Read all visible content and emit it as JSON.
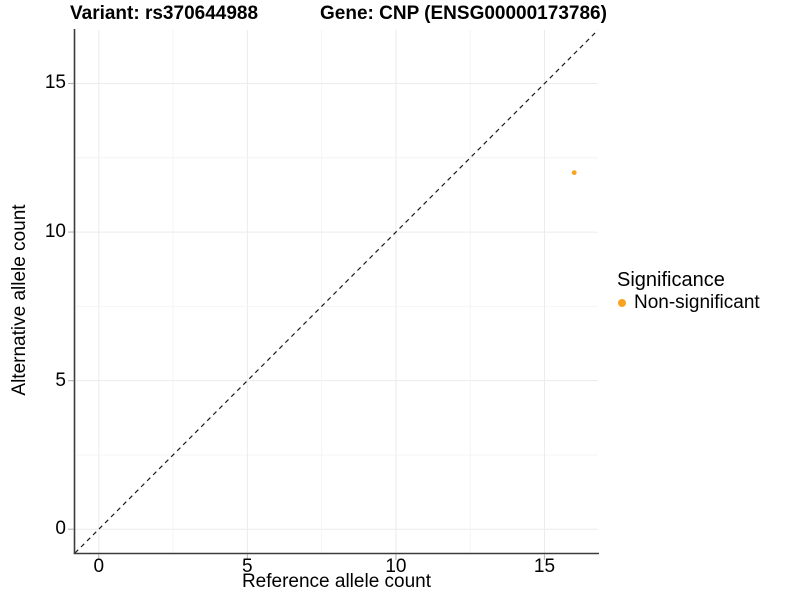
{
  "figure": {
    "title_left": "Variant: rs370644988",
    "title_right": "Gene: CNP (ENSG00000173786)"
  },
  "chart_data": {
    "type": "scatter",
    "title": "Variant: rs370644988   Gene: CNP (ENSG00000173786)",
    "xlabel": "Reference allele count",
    "ylabel": "Alternative allele count",
    "xlim": [
      -0.8,
      16.8
    ],
    "ylim": [
      -0.8,
      16.8
    ],
    "x_ticks": [
      0,
      5,
      10,
      15
    ],
    "y_ticks": [
      0,
      5,
      10,
      15
    ],
    "grid": true,
    "grid_step": 2.5,
    "series": [
      {
        "name": "Non-significant",
        "color": "#F9A320",
        "point_radius": 2.4,
        "points": [
          [
            16,
            12
          ]
        ]
      }
    ],
    "reference_line": {
      "equation": "y = x",
      "style": "dashed",
      "color": "#1A1A1A",
      "from": [
        -0.8,
        -0.8
      ],
      "to": [
        16.8,
        16.8
      ]
    },
    "legend": {
      "position": "right",
      "title": "Significance",
      "entries": [
        {
          "label": "Non-significant",
          "color": "#F9A320"
        }
      ]
    }
  },
  "colors": {
    "background": "#FFFFFF",
    "axis_line": "#3C3C3C",
    "tick_mark": "#BBBBBB",
    "grid_major": "#ECECEC",
    "grid_minor": "#F4F4F4",
    "text": "#000000",
    "point": "#F9A320"
  }
}
